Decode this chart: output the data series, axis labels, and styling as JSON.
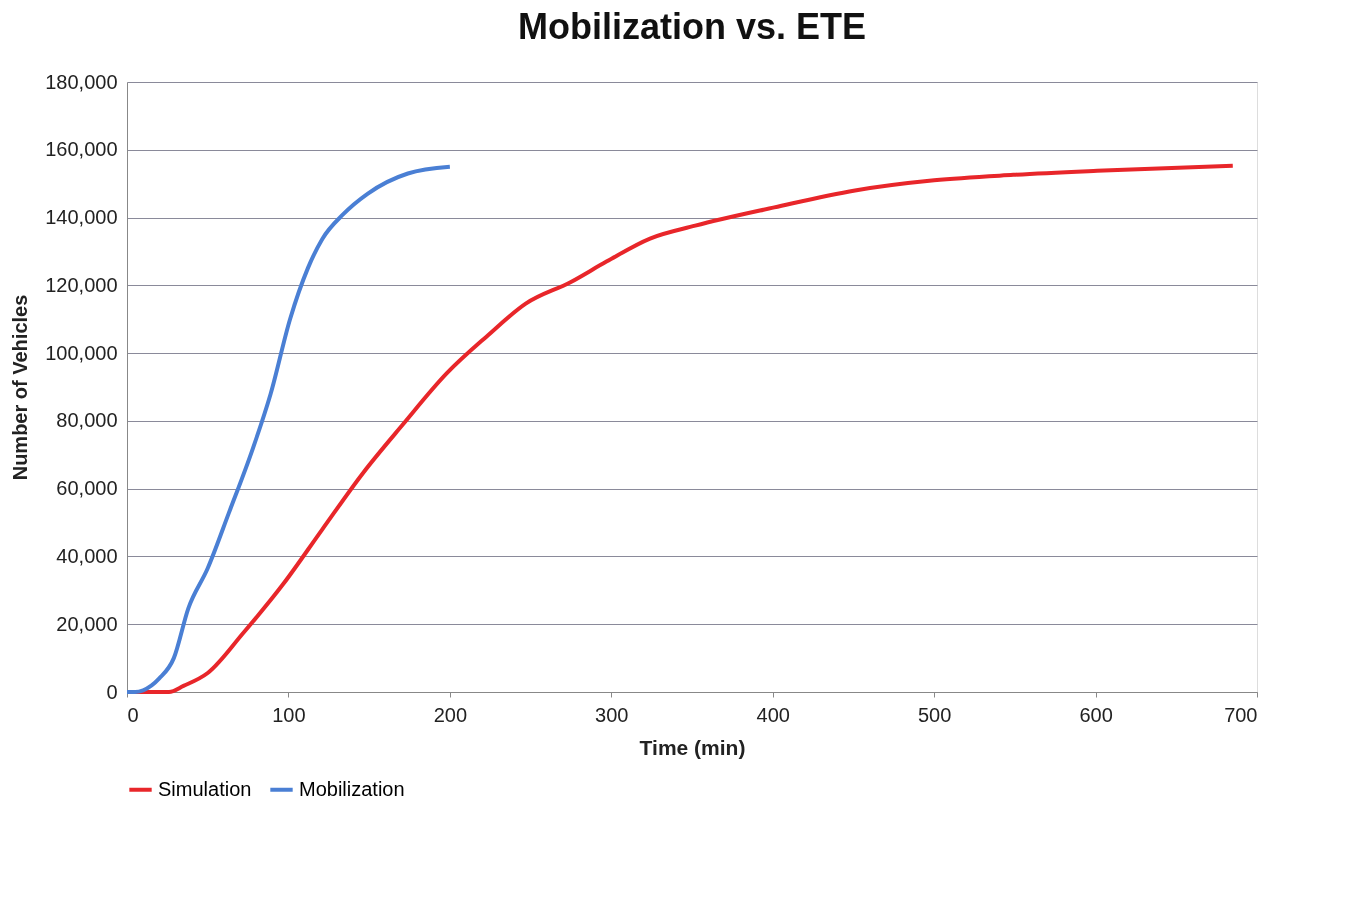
{
  "chart_data": {
    "type": "line",
    "title": "Mobilization vs. ETE",
    "xlabel": "Time (min)",
    "ylabel": "Number of Vehicles",
    "xlim": [
      0,
      700
    ],
    "xticks": [
      0,
      100,
      200,
      300,
      400,
      500,
      600,
      700
    ],
    "ylim": [
      0,
      180000
    ],
    "yticks": [
      {
        "value": 0,
        "label": "0"
      },
      {
        "value": 20000,
        "label": "20,000"
      },
      {
        "value": 40000,
        "label": "40,000"
      },
      {
        "value": 60000,
        "label": "60,000"
      },
      {
        "value": 80000,
        "label": "80,000"
      },
      {
        "value": 100000,
        "label": "100,000"
      },
      {
        "value": 120000,
        "label": "120,000"
      },
      {
        "value": 140000,
        "label": "140,000"
      },
      {
        "value": 160000,
        "label": "160,000"
      },
      {
        "value": 180000,
        "label": "180,000"
      }
    ],
    "grid": "y",
    "legend": "bottom",
    "marker": "none",
    "line_style": "solid",
    "series": [
      {
        "name": "Simulation",
        "color": "#e8262a",
        "x": [
          0,
          26,
          35,
          50,
          72,
          97,
          121,
          146,
          171,
          198,
          223,
          247,
          275,
          297,
          324,
          352,
          401,
          451,
          500,
          549,
          601,
          685
        ],
        "values": [
          0,
          0,
          1800,
          5600,
          17400,
          32000,
          48000,
          64500,
          79000,
          94000,
          105000,
          114600,
          121000,
          127000,
          133800,
          137600,
          143000,
          148000,
          151000,
          152600,
          153800,
          155300
        ]
      },
      {
        "name": "Mobilization",
        "color": "#4a7fd4",
        "x": [
          0,
          5,
          10,
          20,
          29,
          38,
          50,
          63,
          78,
          89,
          101,
          112,
          121,
          134,
          149,
          174,
          200
        ],
        "values": [
          0,
          0,
          500,
          4000,
          10000,
          24700,
          36500,
          52700,
          71900,
          88000,
          110000,
          125000,
          133700,
          141000,
          147000,
          153000,
          155000
        ]
      }
    ]
  }
}
